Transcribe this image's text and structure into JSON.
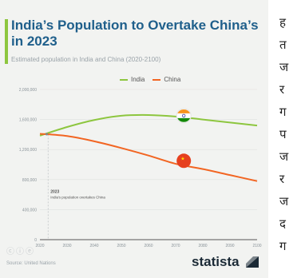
{
  "chart_data": {
    "type": "line",
    "title": "India’s Population to Overtake China’s in 2023",
    "subtitle": "Estimated population in India and China (2020-2100)",
    "x": [
      2020,
      2030,
      2040,
      2050,
      2060,
      2070,
      2080,
      2090,
      2100
    ],
    "series": [
      {
        "name": "India",
        "color": "#8dc63f",
        "values": [
          1385000,
          1500000,
          1593000,
          1650000,
          1660000,
          1640000,
          1600000,
          1560000,
          1520000
        ]
      },
      {
        "name": "China",
        "color": "#f26522",
        "values": [
          1410000,
          1380000,
          1310000,
          1220000,
          1120000,
          1010000,
          940000,
          860000,
          780000
        ]
      }
    ],
    "yticks": [
      "0",
      "400,000",
      "800,000",
      "1,200,000",
      "1,600,000",
      "2,000,000"
    ],
    "ylim": [
      0,
      2000000
    ],
    "xlim": [
      2020,
      2100
    ],
    "annotation": {
      "year": "2023",
      "text": "India's population overtakes China"
    },
    "flags": [
      {
        "country": "India",
        "x": 2073,
        "y": 1650000
      },
      {
        "country": "China",
        "x": 2073,
        "y": 1050000
      }
    ],
    "grid": "horizontal",
    "legend": "top-center"
  },
  "footer": {
    "source": "Source: United Nations",
    "brand": "statista",
    "license_icons": "ⓒⓘⓔ"
  },
  "margin_text": [
    "ह",
    "त",
    "ज",
    "र",
    "ग",
    "प",
    "ज",
    "र",
    "ज",
    "द",
    "ग"
  ]
}
